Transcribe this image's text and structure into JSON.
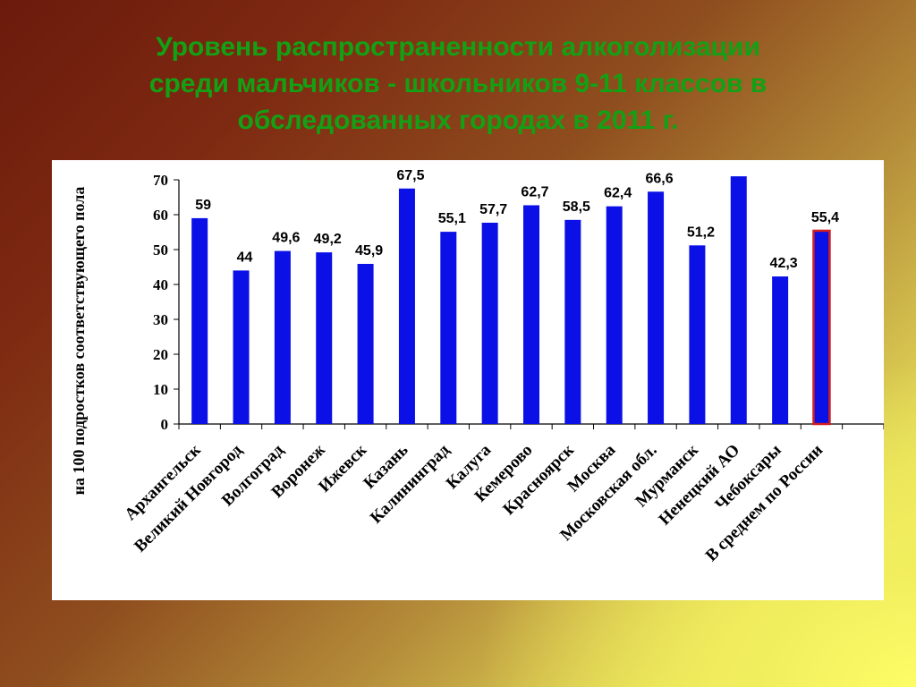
{
  "slide": {
    "title_lines": [
      "Уровень распространенности алкоголизации",
      "среди мальчиков - школьников 9-11 классов  в",
      "обследованных городах в 2011 г."
    ]
  },
  "chart_data": {
    "type": "bar",
    "title": "",
    "xlabel": "",
    "ylabel": "на 100 подростков соответствующего пола",
    "ylim": [
      0,
      70
    ],
    "yticks": [
      0,
      10,
      20,
      30,
      40,
      50,
      60,
      70
    ],
    "grid": false,
    "legend": "none",
    "categories": [
      "Архангельск",
      "Великий Новгород",
      "Волгоград",
      "Воронеж",
      "Ижевск",
      "Казань",
      "Калининград",
      "Калуга",
      "Кемерово",
      "Красноярск",
      "Москва",
      "Московская обл.",
      "Мурманск",
      "Ненецкий АО",
      "Чебоксары",
      "В среднем по России"
    ],
    "values": [
      59,
      44,
      49.6,
      49.2,
      45.9,
      67.5,
      55.1,
      57.7,
      62.7,
      58.5,
      62.4,
      66.6,
      51.2,
      71,
      42.3,
      55.4
    ],
    "data_labels": [
      "59",
      "44",
      "49,6",
      "49,2",
      "45,9",
      "67,5",
      "55,1",
      "57,7",
      "62,7",
      "58,5",
      "62,4",
      "66,6",
      "51,2",
      "",
      "42,3",
      "55,4"
    ],
    "bar_color": "#0b10e6",
    "highlight_index": 15,
    "highlight_border_color": "#d21e1e"
  }
}
